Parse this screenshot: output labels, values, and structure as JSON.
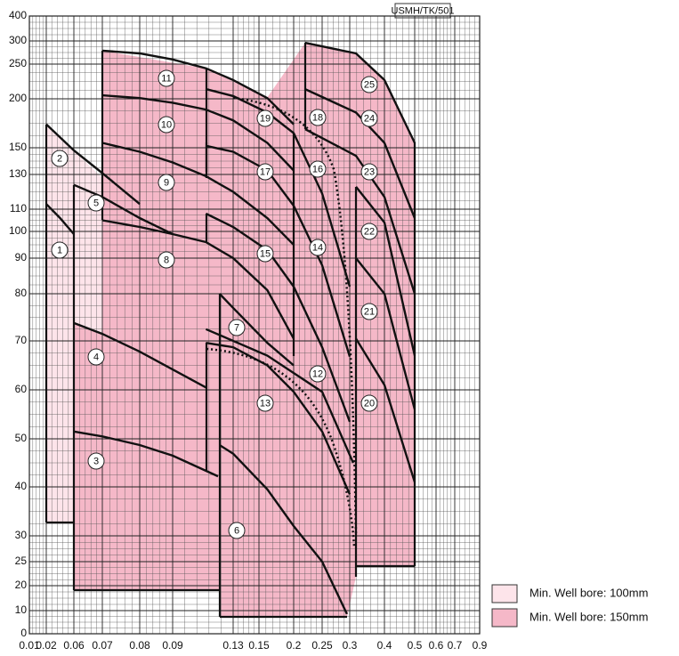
{
  "chart_data": {
    "type": "line",
    "code": "USMH/TK/501",
    "xlim": [
      0.01,
      0.9
    ],
    "xticks": [
      0.01,
      0.02,
      0.06,
      0.07,
      0.08,
      0.09,
      0.13,
      0.15,
      0.2,
      0.25,
      0.3,
      0.4,
      0.5,
      0.6,
      0.7,
      0.9
    ],
    "ylim": [
      0,
      400
    ],
    "yticks": [
      0,
      10,
      20,
      25,
      30,
      40,
      50,
      60,
      70,
      80,
      90,
      100,
      110,
      130,
      150,
      200,
      250,
      300,
      400
    ],
    "grid": true,
    "line_color": "#111111",
    "curves": [
      {
        "flow": [
          0.02,
          0.04,
          0.06
        ],
        "head": [
          113,
          106,
          99
        ]
      },
      {
        "flow": [
          0.02,
          0.06,
          0.07,
          0.08
        ],
        "head": [
          174,
          148,
          131,
          113
        ]
      },
      {
        "flow": [
          0.06,
          0.07,
          0.08,
          0.09,
          0.12
        ],
        "head": [
          51.5,
          50.5,
          48.7,
          46.5,
          42.2
        ]
      },
      {
        "flow": [
          0.06,
          0.07,
          0.08,
          0.112
        ],
        "head": [
          73.8,
          71.5,
          67.8,
          60.5
        ]
      },
      {
        "flow": [
          0.06,
          0.07,
          0.08,
          0.09
        ],
        "head": [
          124,
          117,
          106,
          99
        ]
      },
      {
        "flow": [
          0.121,
          0.13,
          0.162,
          0.2,
          0.25,
          0.295
        ],
        "head": [
          48.7,
          46.9,
          39.5,
          32,
          25,
          8.5
        ]
      },
      {
        "flow": [
          0.121,
          0.13,
          0.162,
          0.2
        ],
        "head": [
          80,
          77,
          69.6,
          65
        ]
      },
      {
        "flow": [
          0.07,
          0.08,
          0.09,
          0.112,
          0.13,
          0.162,
          0.2
        ],
        "head": [
          105,
          102,
          99,
          96,
          90,
          81,
          70.5
        ]
      },
      {
        "flow": [
          0.07,
          0.08,
          0.09,
          0.112,
          0.13,
          0.162,
          0.2
        ],
        "head": [
          155,
          147,
          139,
          129,
          120,
          106,
          95
        ]
      },
      {
        "flow": [
          0.07,
          0.08,
          0.09,
          0.112,
          0.13,
          0.162,
          0.2
        ],
        "head": [
          205,
          201,
          196,
          189,
          178,
          155,
          133
        ]
      },
      {
        "flow": [
          0.07,
          0.08,
          0.09,
          0.112,
          0.13,
          0.162,
          0.2
        ],
        "head": [
          279,
          273,
          260,
          244,
          227,
          201,
          174
        ]
      },
      {
        "flow": [
          0.112,
          0.162,
          0.25,
          0.31
        ],
        "head": [
          72.5,
          67,
          59.6,
          45
        ]
      },
      {
        "flow": [
          0.112,
          0.13,
          0.162,
          0.2,
          0.25,
          0.3
        ],
        "head": [
          69.6,
          68.7,
          65,
          59.6,
          51.5,
          38.5
        ]
      },
      {
        "flow": [
          0.112,
          0.13,
          0.162,
          0.2,
          0.25,
          0.3
        ],
        "head": [
          108,
          102,
          93,
          82,
          68.7,
          53.5
        ]
      },
      {
        "flow": [
          0.112,
          0.13,
          0.162,
          0.2,
          0.25,
          0.3
        ],
        "head": [
          152,
          147,
          133,
          112,
          88,
          66.8
        ]
      },
      {
        "flow": [
          0.112,
          0.13,
          0.162,
          0.2,
          0.25,
          0.3
        ],
        "head": [
          214,
          204,
          186,
          165,
          119,
          82
        ]
      },
      {
        "flow": [
          0.22,
          0.318,
          0.4,
          0.5
        ],
        "head": [
          296,
          273,
          227,
          155
        ]
      },
      {
        "flow": [
          0.22,
          0.318,
          0.4,
          0.5
        ],
        "head": [
          214,
          186,
          155,
          106
        ]
      },
      {
        "flow": [
          0.22,
          0.318,
          0.4,
          0.5
        ],
        "head": [
          169,
          144,
          117,
          80
        ]
      },
      {
        "flow": [
          0.318,
          0.4,
          0.5
        ],
        "head": [
          123,
          104,
          67
        ]
      },
      {
        "flow": [
          0.318,
          0.4,
          0.5
        ],
        "head": [
          90,
          80,
          56
        ]
      },
      {
        "flow": [
          0.318,
          0.4,
          0.5
        ],
        "head": [
          70.5,
          61,
          41
        ]
      }
    ],
    "pump_labels": [
      "1",
      "2",
      "3",
      "4",
      "5",
      "6",
      "7",
      "8",
      "9",
      "10",
      "11",
      "12",
      "13",
      "14",
      "15",
      "16",
      "17",
      "18",
      "19",
      "20",
      "21",
      "22",
      "23",
      "24",
      "25"
    ],
    "legend": [
      {
        "label": "Min. Well bore: 100mm",
        "color": "#fde4ea"
      },
      {
        "label": "Min. Well bore: 150mm",
        "color": "#f5b8c8"
      }
    ]
  }
}
